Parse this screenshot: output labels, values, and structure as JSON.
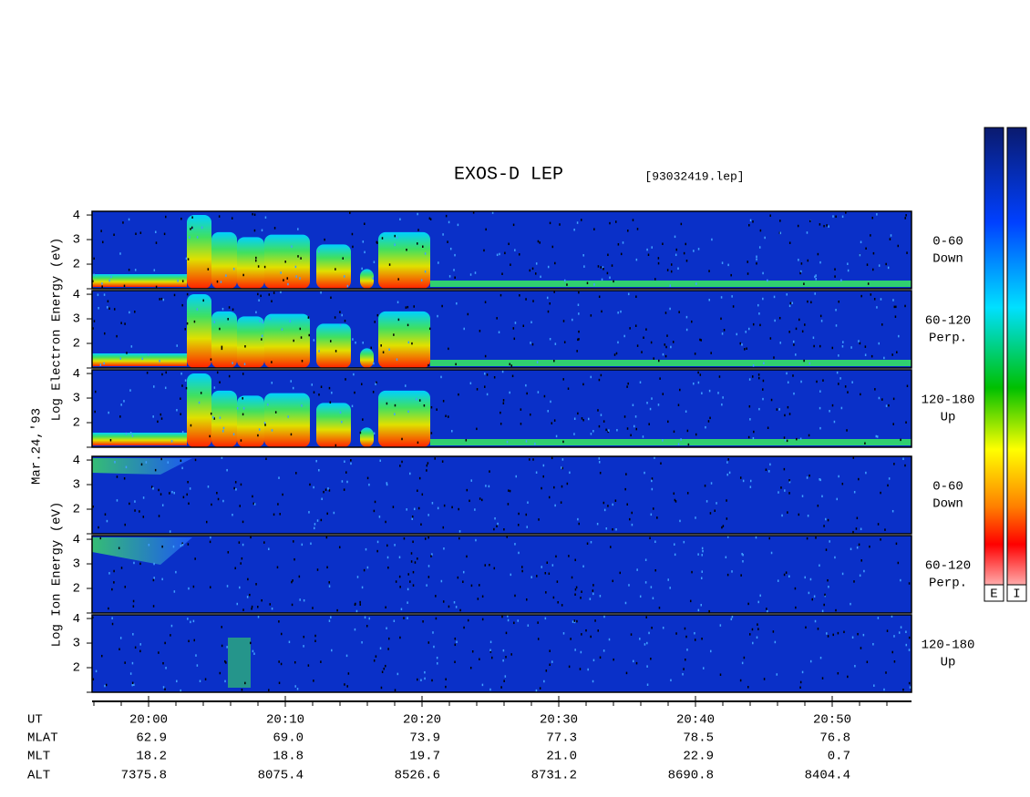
{
  "title": "EXOS-D LEP",
  "file": "[93032419.lep]",
  "date": "Mar.24,'93",
  "groups": [
    {
      "axis_label": "Log Electron Energy (eV)",
      "kind": "electron",
      "panels": [
        {
          "angle": "0-60",
          "direction": "Down"
        },
        {
          "angle": "60-120",
          "direction": "Perp."
        },
        {
          "angle": "120-180",
          "direction": "Up"
        }
      ]
    },
    {
      "axis_label": "Log Ion Energy (eV)",
      "kind": "ion",
      "panels": [
        {
          "angle": "0-60",
          "direction": "Down"
        },
        {
          "angle": "60-120",
          "direction": "Perp."
        },
        {
          "angle": "120-180",
          "direction": "Up"
        }
      ]
    }
  ],
  "ylim": [
    1,
    4.15
  ],
  "yticks": [
    2,
    3,
    4
  ],
  "colorbars": [
    "E",
    "I"
  ],
  "table": {
    "row_labels": [
      "UT",
      "MLAT",
      "MLT",
      "ALT"
    ],
    "times": [
      "20:00",
      "20:10",
      "20:20",
      "20:30",
      "20:40",
      "20:50"
    ],
    "rows": [
      [
        "62.9",
        "69.0",
        "73.9",
        "77.3",
        "78.5",
        "76.8"
      ],
      [
        "18.2",
        "18.8",
        "19.7",
        "21.0",
        "22.9",
        "0.7"
      ],
      [
        "7375.8",
        "8075.4",
        "8526.6",
        "8731.2",
        "8690.8",
        "8404.4"
      ]
    ]
  }
}
